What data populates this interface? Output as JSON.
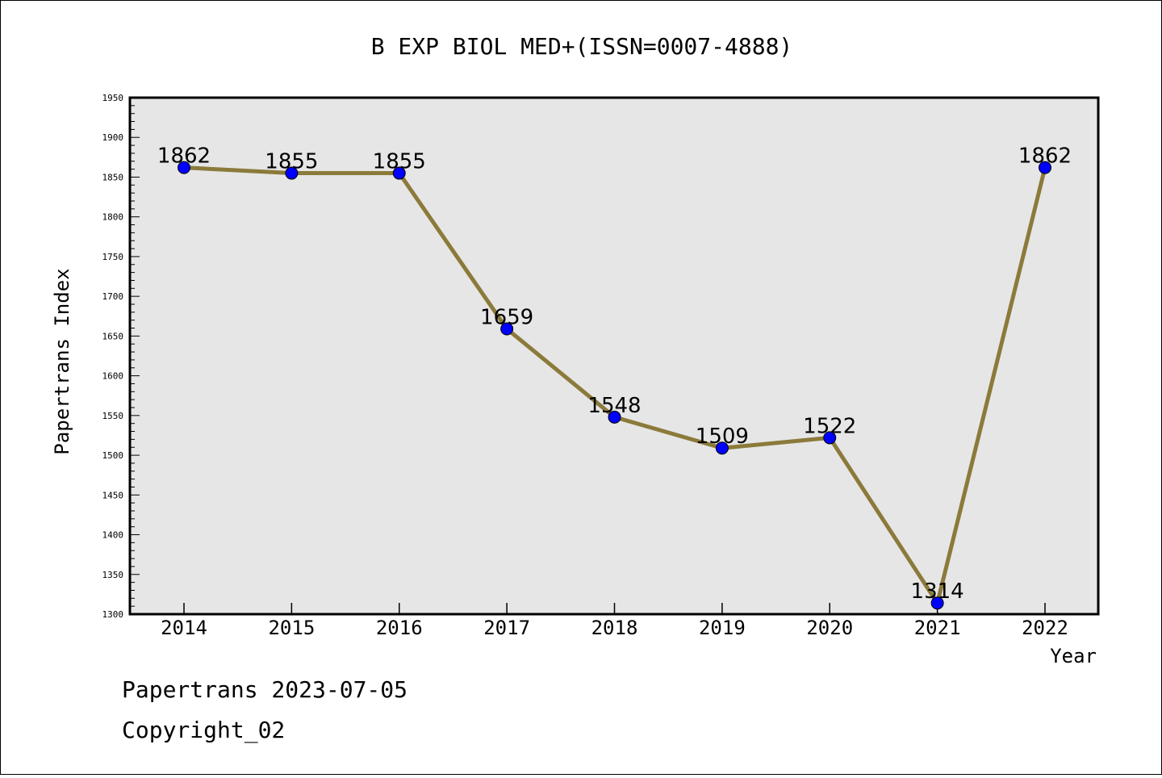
{
  "chart_data": {
    "type": "line",
    "title": "B EXP BIOL MED+(ISSN=0007-4888)",
    "xlabel": "Year",
    "ylabel": "Papertrans Index",
    "categories": [
      "2014",
      "2015",
      "2016",
      "2017",
      "2018",
      "2019",
      "2020",
      "2021",
      "2022"
    ],
    "values": [
      1862,
      1855,
      1855,
      1659,
      1548,
      1509,
      1522,
      1314,
      1862
    ],
    "ylim": [
      1300,
      1950
    ],
    "yticks": [
      1300,
      1350,
      1400,
      1450,
      1500,
      1550,
      1600,
      1650,
      1700,
      1750,
      1800,
      1850,
      1900,
      1950
    ],
    "grid": false,
    "colors": {
      "line": "#8b7a3a",
      "marker": "#0000ff",
      "plot_background": "#e6e6e6"
    }
  },
  "footer": {
    "line1": "Papertrans 2023-07-05",
    "line2": "Copyright_02"
  }
}
